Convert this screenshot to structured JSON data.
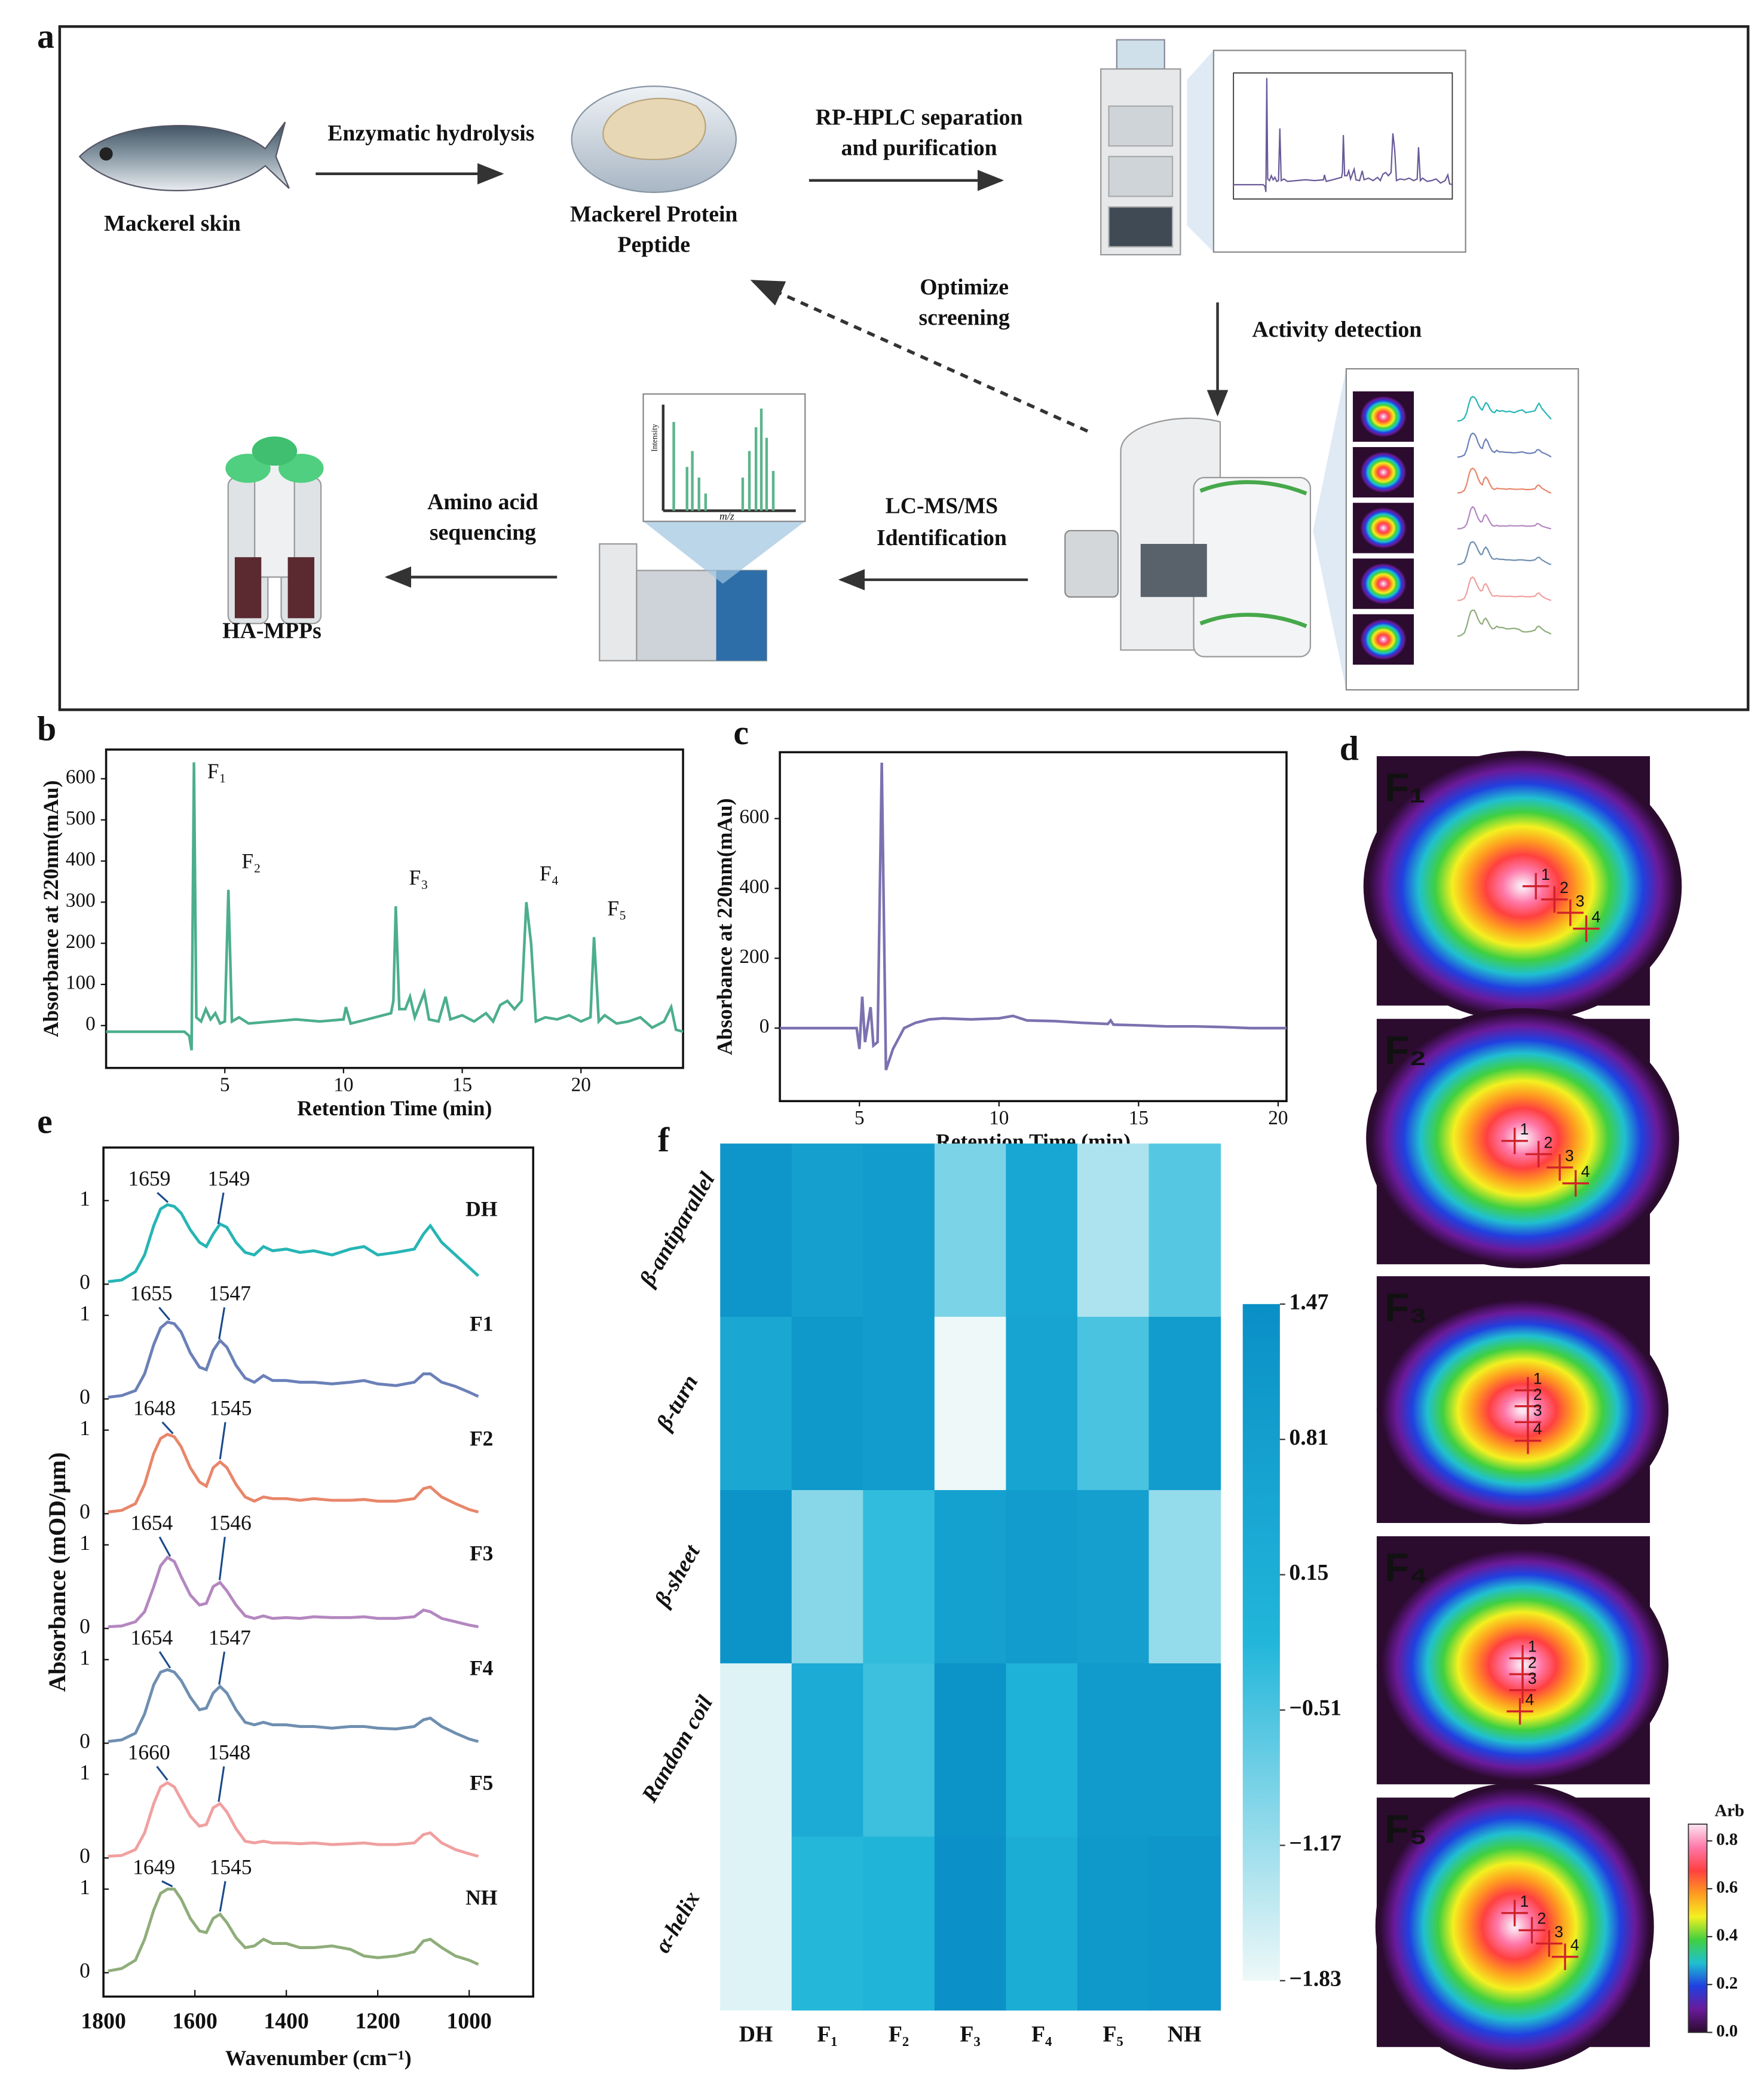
{
  "panel_letters": [
    "a",
    "b",
    "c",
    "d",
    "e",
    "f"
  ],
  "workflow": {
    "fish_label": "Mackerel skin",
    "step1": "Enzymatic hydrolysis",
    "peptide": [
      "Mackerel Protein",
      "Peptide"
    ],
    "step2": [
      "RP-HPLC separation",
      "and purification"
    ],
    "step3": [
      "Optimize",
      "screening"
    ],
    "step4": "Activity detection",
    "step5": [
      "LC-MS/MS",
      "Identification"
    ],
    "step6": [
      "Amino acid",
      "sequencing"
    ],
    "product": "HA-MPPs",
    "ms_inset": {
      "x_label": "m/z",
      "y_label": "Intensity"
    }
  },
  "chart_data": [
    {
      "type": "line",
      "x_label": "Retention Time (min)",
      "y_label": "Absorbance at 220nm(mAu)",
      "xlim": [
        0,
        24.3
      ],
      "ylim": [
        -103,
        671
      ],
      "xticks": [
        5,
        10,
        15,
        20
      ],
      "yticks": [
        0,
        100,
        200,
        300,
        400,
        500,
        600
      ],
      "color": "#4cae8c",
      "x": [
        0,
        3.3,
        3.5,
        3.6,
        3.7,
        3.8,
        4.0,
        4.2,
        4.4,
        4.6,
        4.8,
        5.0,
        5.15,
        5.3,
        5.6,
        6.0,
        7,
        8,
        9,
        10,
        10.1,
        10.3,
        11,
        12,
        12.1,
        12.2,
        12.35,
        12.6,
        12.8,
        13,
        13.4,
        13.6,
        14,
        14.3,
        14.5,
        15,
        15.5,
        16,
        16.3,
        16.6,
        16.9,
        17.2,
        17.5,
        17.7,
        17.9,
        18.1,
        18.5,
        19,
        19.5,
        20,
        20.4,
        20.55,
        20.75,
        21,
        21.5,
        22,
        22.5,
        23,
        23.5,
        23.8,
        24,
        24.3
      ],
      "values": [
        -15,
        -15,
        -25,
        -60,
        640,
        20,
        10,
        40,
        15,
        30,
        5,
        10,
        330,
        10,
        20,
        5,
        10,
        15,
        10,
        15,
        45,
        5,
        15,
        30,
        60,
        290,
        40,
        40,
        70,
        20,
        80,
        15,
        10,
        70,
        15,
        25,
        10,
        30,
        10,
        50,
        60,
        40,
        60,
        300,
        200,
        10,
        20,
        15,
        25,
        10,
        20,
        215,
        10,
        25,
        5,
        10,
        20,
        -5,
        10,
        45,
        -10,
        -15
      ],
      "annotations": [
        {
          "text": "F₁",
          "x": 3.7
        },
        {
          "text": "F₂",
          "x": 5.15
        },
        {
          "text": "F₃",
          "x": 12.2
        },
        {
          "text": "F₄",
          "x": 17.7
        },
        {
          "text": "F₅",
          "x": 20.55
        }
      ]
    },
    {
      "type": "line",
      "x_label": "Retention Time (min)",
      "y_label": "Absorbance at 220nm(mAu)",
      "xlim": [
        2.15,
        20.3
      ],
      "ylim": [
        -209,
        790
      ],
      "xticks": [
        5,
        10,
        15,
        20
      ],
      "yticks": [
        0,
        200,
        400,
        600
      ],
      "color": "#7b72b0",
      "x": [
        2.15,
        4.9,
        5.0,
        5.1,
        5.2,
        5.4,
        5.5,
        5.65,
        5.8,
        5.95,
        6.2,
        6.6,
        7,
        7.5,
        8,
        9,
        10,
        10.5,
        11,
        12,
        13,
        13.9,
        14,
        14.1,
        15,
        16,
        17,
        18,
        19,
        20,
        20.3
      ],
      "values": [
        0,
        0,
        -60,
        90,
        -40,
        60,
        -50,
        -40,
        760,
        -120,
        -60,
        0,
        15,
        25,
        28,
        25,
        28,
        35,
        22,
        20,
        15,
        12,
        22,
        10,
        8,
        5,
        5,
        3,
        0,
        0,
        0
      ]
    },
    {
      "type": "image_grid",
      "panels": [
        {
          "label": "F₁",
          "markers": [
            "1",
            "2",
            "3",
            "4"
          ]
        },
        {
          "label": "F₂",
          "markers": [
            "1",
            "2",
            "3",
            "4"
          ]
        },
        {
          "label": "F₃",
          "markers": [
            "1",
            "2",
            "3",
            "4"
          ]
        },
        {
          "label": "F₄",
          "markers": [
            "1",
            "2",
            "3",
            "4"
          ]
        },
        {
          "label": "F₅",
          "markers": [
            "1",
            "2",
            "3",
            "4"
          ]
        }
      ],
      "colorbar": {
        "title": "Arb",
        "lim": [
          0,
          0.87
        ],
        "ticks": [
          {
            "value": 0,
            "label": "0.0"
          },
          0.2,
          0.4,
          0.6,
          0.8
        ],
        "colors": [
          "#2b0b2e",
          "#6a1a9a",
          "#2040e0",
          "#20c0d0",
          "#40d040",
          "#f4f020",
          "#ff9a20",
          "#ff4040",
          "#ff78a8",
          "#fbe6f2"
        ]
      }
    },
    {
      "type": "stacked_line",
      "x_label": "Wavenumber (cm⁻¹)",
      "y_label": "Absorbance (mOD/μm)",
      "xlim": [
        1800,
        860
      ],
      "xticks": [
        1800,
        1600,
        1400,
        1200,
        1000
      ],
      "yticks": [
        0,
        1
      ],
      "x": [
        1790,
        1760,
        1730,
        1710,
        1690,
        1675,
        1660,
        1645,
        1630,
        1610,
        1590,
        1575,
        1560,
        1545,
        1530,
        1510,
        1490,
        1470,
        1450,
        1430,
        1400,
        1370,
        1340,
        1300,
        1260,
        1230,
        1200,
        1160,
        1120,
        1100,
        1085,
        1060,
        1030,
        1000,
        980
      ],
      "series": [
        {
          "name": "DH",
          "color": "#27b5b5",
          "peaks": [
            1659,
            1549
          ],
          "values": [
            0.03,
            0.05,
            0.15,
            0.35,
            0.7,
            0.9,
            0.95,
            0.93,
            0.85,
            0.65,
            0.5,
            0.45,
            0.6,
            0.72,
            0.68,
            0.5,
            0.38,
            0.35,
            0.45,
            0.4,
            0.42,
            0.38,
            0.4,
            0.35,
            0.42,
            0.45,
            0.35,
            0.38,
            0.42,
            0.6,
            0.7,
            0.5,
            0.35,
            0.2,
            0.1
          ]
        },
        {
          "name": "F1",
          "color": "#6b80b8",
          "peaks": [
            1655,
            1547
          ],
          "values": [
            0.02,
            0.04,
            0.1,
            0.3,
            0.65,
            0.85,
            0.92,
            0.9,
            0.8,
            0.55,
            0.38,
            0.35,
            0.58,
            0.7,
            0.62,
            0.4,
            0.25,
            0.2,
            0.28,
            0.22,
            0.22,
            0.2,
            0.2,
            0.18,
            0.2,
            0.22,
            0.18,
            0.16,
            0.2,
            0.3,
            0.3,
            0.2,
            0.15,
            0.08,
            0.03
          ]
        },
        {
          "name": "F2",
          "color": "#e8866a",
          "peaks": [
            1648,
            1545
          ],
          "values": [
            0.02,
            0.04,
            0.12,
            0.35,
            0.72,
            0.9,
            0.95,
            0.92,
            0.8,
            0.55,
            0.38,
            0.33,
            0.55,
            0.62,
            0.55,
            0.35,
            0.2,
            0.15,
            0.2,
            0.18,
            0.18,
            0.16,
            0.18,
            0.16,
            0.16,
            0.17,
            0.15,
            0.15,
            0.18,
            0.3,
            0.32,
            0.2,
            0.12,
            0.05,
            0.02
          ]
        },
        {
          "name": "F3",
          "color": "#b487c0",
          "peaks": [
            1654,
            1546
          ],
          "values": [
            0.02,
            0.03,
            0.08,
            0.2,
            0.5,
            0.75,
            0.85,
            0.8,
            0.62,
            0.4,
            0.28,
            0.3,
            0.5,
            0.55,
            0.45,
            0.28,
            0.15,
            0.12,
            0.15,
            0.12,
            0.13,
            0.12,
            0.14,
            0.13,
            0.13,
            0.14,
            0.12,
            0.12,
            0.14,
            0.22,
            0.2,
            0.12,
            0.08,
            0.04,
            0.02
          ]
        },
        {
          "name": "F4",
          "color": "#6f8fb0",
          "peaks": [
            1654,
            1547
          ],
          "values": [
            0.02,
            0.04,
            0.12,
            0.35,
            0.7,
            0.85,
            0.88,
            0.85,
            0.75,
            0.55,
            0.4,
            0.42,
            0.6,
            0.68,
            0.6,
            0.4,
            0.25,
            0.22,
            0.25,
            0.22,
            0.22,
            0.2,
            0.2,
            0.18,
            0.2,
            0.2,
            0.18,
            0.17,
            0.2,
            0.28,
            0.3,
            0.2,
            0.12,
            0.05,
            0.02
          ]
        },
        {
          "name": "F5",
          "color": "#f0a0a0",
          "peaks": [
            1660,
            1548
          ],
          "values": [
            0.02,
            0.03,
            0.1,
            0.3,
            0.65,
            0.85,
            0.9,
            0.85,
            0.7,
            0.5,
            0.38,
            0.4,
            0.6,
            0.65,
            0.55,
            0.35,
            0.2,
            0.18,
            0.2,
            0.18,
            0.18,
            0.17,
            0.18,
            0.16,
            0.17,
            0.18,
            0.16,
            0.16,
            0.18,
            0.28,
            0.3,
            0.18,
            0.1,
            0.05,
            0.02
          ]
        },
        {
          "name": "NH",
          "color": "#8fad7a",
          "peaks": [
            1649,
            1545
          ],
          "values": [
            0.02,
            0.05,
            0.15,
            0.4,
            0.75,
            0.95,
            1.0,
            1.0,
            0.88,
            0.65,
            0.5,
            0.48,
            0.65,
            0.7,
            0.6,
            0.42,
            0.3,
            0.32,
            0.4,
            0.35,
            0.35,
            0.3,
            0.3,
            0.32,
            0.28,
            0.2,
            0.18,
            0.2,
            0.25,
            0.38,
            0.4,
            0.3,
            0.2,
            0.15,
            0.1
          ]
        }
      ]
    },
    {
      "type": "heatmap",
      "rows": [
        "β-antiparallel",
        "β-turn",
        "β-sheet",
        "Random coil",
        "α-helix"
      ],
      "columns": [
        "DH",
        "F₁",
        "F₂",
        "F₃",
        "F₄",
        "F₅",
        "NH"
      ],
      "values": [
        [
          1.2,
          0.8,
          0.9,
          -0.9,
          0.5,
          -1.3,
          -0.6
        ],
        [
          0.4,
          1.1,
          0.9,
          -1.83,
          0.6,
          -0.5,
          0.9
        ],
        [
          1.3,
          -1.0,
          -0.3,
          0.7,
          0.9,
          0.8,
          -1.1
        ],
        [
          -1.7,
          0.3,
          -0.4,
          1.3,
          0.0,
          1.0,
          1.0
        ],
        [
          -1.7,
          -0.2,
          -0.1,
          1.4,
          0.2,
          1.1,
          1.2
        ]
      ],
      "zlim": [
        -1.83,
        1.47
      ],
      "colorbar_ticks": [
        1.47,
        0.81,
        0.15,
        {
          "value": -0.51,
          "label": "−0.51"
        },
        {
          "value": -1.17,
          "label": "−1.17"
        },
        {
          "value": -1.83,
          "label": "−1.83"
        }
      ],
      "colors": [
        "#eef8f8",
        "#22b6da",
        "#0a8fc6"
      ]
    }
  ]
}
